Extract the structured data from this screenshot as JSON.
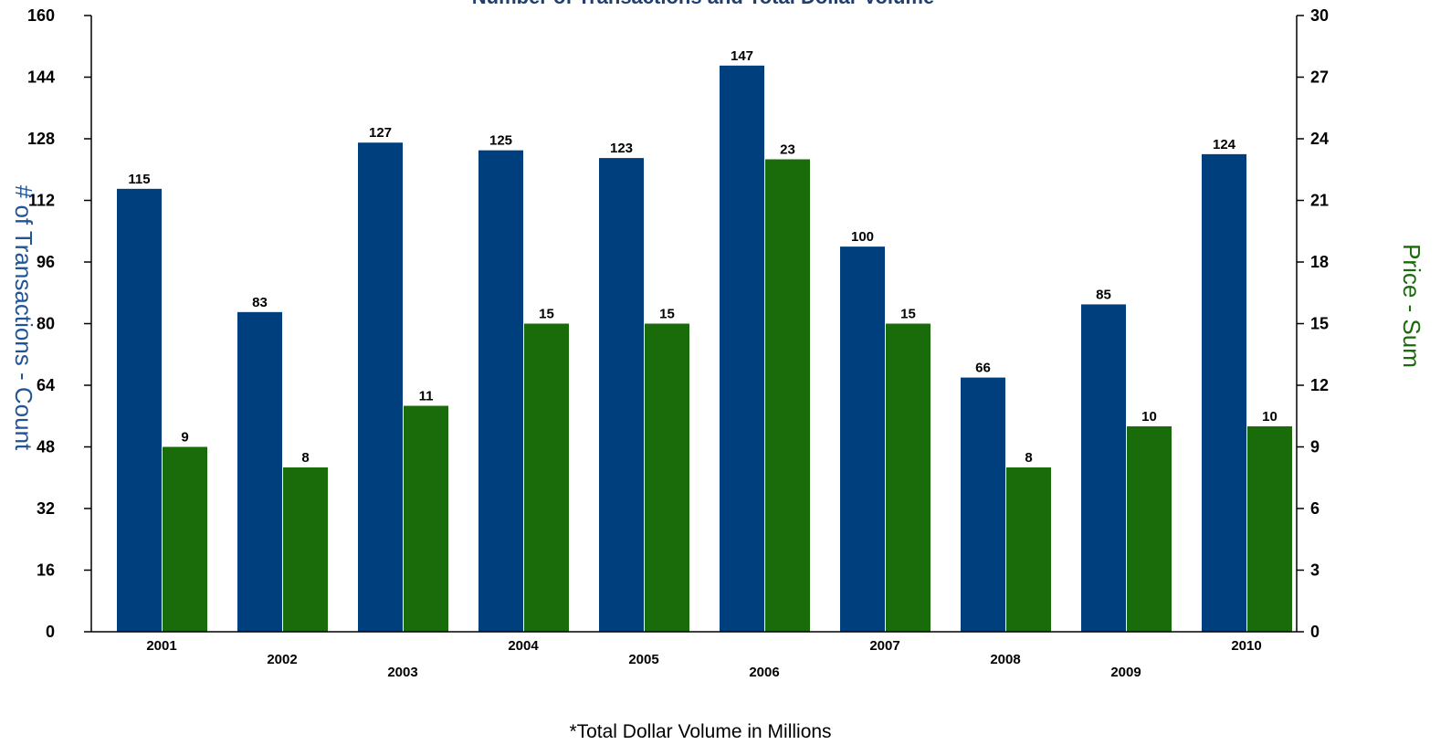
{
  "chart_data": {
    "type": "bar",
    "title": "Number of Transactions and Total Dollar Volume",
    "categories": [
      "2001",
      "2002",
      "2003",
      "2004",
      "2005",
      "2006",
      "2007",
      "2008",
      "2009",
      "2010"
    ],
    "series": [
      {
        "axis": "left",
        "color": "#003f7d",
        "values": [
          115,
          83,
          127,
          125,
          123,
          147,
          100,
          66,
          85,
          124
        ]
      },
      {
        "axis": "right",
        "color": "#1a6b0a",
        "values": [
          9,
          8,
          11,
          15,
          15,
          23,
          15,
          8,
          10,
          10
        ]
      }
    ],
    "ylabel_left": "# of Transactions - Count",
    "ylabel_right": "Price - Sum",
    "ylim_left": [
      0,
      160
    ],
    "yticks_left": [
      "0",
      "16",
      "32",
      "48",
      "64",
      "80",
      "96",
      "112",
      "128",
      "144",
      "160"
    ],
    "ylim_right": [
      0,
      30
    ],
    "yticks_right": [
      "0",
      "3",
      "6",
      "9",
      "12",
      "15",
      "18",
      "21",
      "24",
      "27",
      "30"
    ],
    "footnote": "*Total Dollar Volume in Millions",
    "grid": false,
    "left_axis_color": "#1f5597",
    "right_axis_color": "#1a6b0a"
  }
}
